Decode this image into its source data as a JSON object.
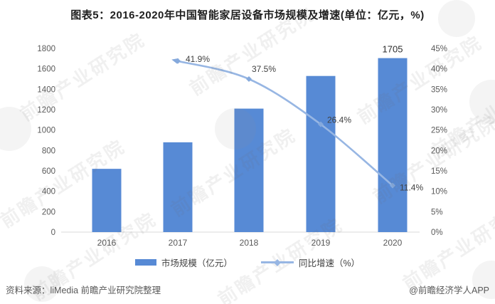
{
  "title": "图表5：2016-2020年中国智能家居设备市场规模及增速(单位：亿元，%)",
  "source": {
    "left": "资料来源：liMedia 前瞻产业研究院整理",
    "right": "@前瞻经济学人APP"
  },
  "watermark": {
    "text": "前瞻产业研究院"
  },
  "colors": {
    "bar": "#578ad5",
    "line": "#97b6e3",
    "marker": "#85a9dc",
    "axis_text": "#595959",
    "label_text": "#404040",
    "bar_label_text": "#2b2b2b",
    "axis_line": "#d9d9d9",
    "title_text": "#1f1f1f"
  },
  "chart_data": {
    "type": "bar",
    "subtype": "bar+line combo, dual axis",
    "title": "图表5：2016-2020年中国智能家居设备市场规模及增速(单位：亿元，%)",
    "categories": [
      "2016",
      "2017",
      "2018",
      "2019",
      "2020"
    ],
    "series": [
      {
        "name": "市场规模（亿元）",
        "type": "bar",
        "axis": "left",
        "values": [
          620,
          880,
          1210,
          1530,
          1705
        ],
        "point_labels": [
          null,
          null,
          null,
          null,
          "1705"
        ]
      },
      {
        "name": "同比增速（%）",
        "type": "line",
        "axis": "right",
        "values": [
          null,
          41.9,
          37.5,
          26.4,
          11.4
        ],
        "point_labels": [
          null,
          "41.9%",
          "37.5%",
          "26.4%",
          "11.4%"
        ]
      }
    ],
    "left_axis": {
      "min": 0,
      "max": 1800,
      "step": 200,
      "tick_labels": [
        "0",
        "200",
        "400",
        "600",
        "800",
        "1000",
        "1200",
        "1400",
        "1600",
        "1800"
      ]
    },
    "right_axis": {
      "min": 0,
      "max": 45,
      "step": 5,
      "tick_labels": [
        "0%",
        "5%",
        "10%",
        "15%",
        "20%",
        "25%",
        "30%",
        "35%",
        "40%",
        "45%"
      ]
    },
    "grid": false,
    "legend_position": "bottom"
  }
}
